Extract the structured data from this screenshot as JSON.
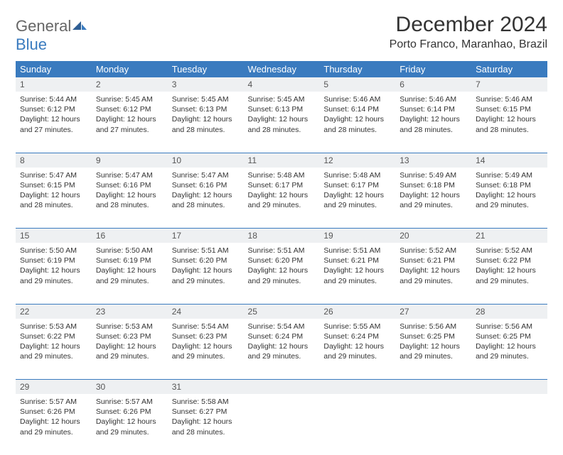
{
  "logo": {
    "word1": "General",
    "word2": "Blue"
  },
  "title": "December 2024",
  "location": "Porto Franco, Maranhao, Brazil",
  "day_headers": [
    "Sunday",
    "Monday",
    "Tuesday",
    "Wednesday",
    "Thursday",
    "Friday",
    "Saturday"
  ],
  "colors": {
    "header_bg": "#3a7bbf",
    "header_fg": "#ffffff",
    "daynum_bg": "#eef0f2",
    "rule": "#3a7bbf",
    "text": "#333333"
  },
  "weeks": [
    [
      {
        "n": "1",
        "sr": "Sunrise: 5:44 AM",
        "ss": "Sunset: 6:12 PM",
        "dl": "Daylight: 12 hours and 27 minutes."
      },
      {
        "n": "2",
        "sr": "Sunrise: 5:45 AM",
        "ss": "Sunset: 6:12 PM",
        "dl": "Daylight: 12 hours and 27 minutes."
      },
      {
        "n": "3",
        "sr": "Sunrise: 5:45 AM",
        "ss": "Sunset: 6:13 PM",
        "dl": "Daylight: 12 hours and 28 minutes."
      },
      {
        "n": "4",
        "sr": "Sunrise: 5:45 AM",
        "ss": "Sunset: 6:13 PM",
        "dl": "Daylight: 12 hours and 28 minutes."
      },
      {
        "n": "5",
        "sr": "Sunrise: 5:46 AM",
        "ss": "Sunset: 6:14 PM",
        "dl": "Daylight: 12 hours and 28 minutes."
      },
      {
        "n": "6",
        "sr": "Sunrise: 5:46 AM",
        "ss": "Sunset: 6:14 PM",
        "dl": "Daylight: 12 hours and 28 minutes."
      },
      {
        "n": "7",
        "sr": "Sunrise: 5:46 AM",
        "ss": "Sunset: 6:15 PM",
        "dl": "Daylight: 12 hours and 28 minutes."
      }
    ],
    [
      {
        "n": "8",
        "sr": "Sunrise: 5:47 AM",
        "ss": "Sunset: 6:15 PM",
        "dl": "Daylight: 12 hours and 28 minutes."
      },
      {
        "n": "9",
        "sr": "Sunrise: 5:47 AM",
        "ss": "Sunset: 6:16 PM",
        "dl": "Daylight: 12 hours and 28 minutes."
      },
      {
        "n": "10",
        "sr": "Sunrise: 5:47 AM",
        "ss": "Sunset: 6:16 PM",
        "dl": "Daylight: 12 hours and 28 minutes."
      },
      {
        "n": "11",
        "sr": "Sunrise: 5:48 AM",
        "ss": "Sunset: 6:17 PM",
        "dl": "Daylight: 12 hours and 29 minutes."
      },
      {
        "n": "12",
        "sr": "Sunrise: 5:48 AM",
        "ss": "Sunset: 6:17 PM",
        "dl": "Daylight: 12 hours and 29 minutes."
      },
      {
        "n": "13",
        "sr": "Sunrise: 5:49 AM",
        "ss": "Sunset: 6:18 PM",
        "dl": "Daylight: 12 hours and 29 minutes."
      },
      {
        "n": "14",
        "sr": "Sunrise: 5:49 AM",
        "ss": "Sunset: 6:18 PM",
        "dl": "Daylight: 12 hours and 29 minutes."
      }
    ],
    [
      {
        "n": "15",
        "sr": "Sunrise: 5:50 AM",
        "ss": "Sunset: 6:19 PM",
        "dl": "Daylight: 12 hours and 29 minutes."
      },
      {
        "n": "16",
        "sr": "Sunrise: 5:50 AM",
        "ss": "Sunset: 6:19 PM",
        "dl": "Daylight: 12 hours and 29 minutes."
      },
      {
        "n": "17",
        "sr": "Sunrise: 5:51 AM",
        "ss": "Sunset: 6:20 PM",
        "dl": "Daylight: 12 hours and 29 minutes."
      },
      {
        "n": "18",
        "sr": "Sunrise: 5:51 AM",
        "ss": "Sunset: 6:20 PM",
        "dl": "Daylight: 12 hours and 29 minutes."
      },
      {
        "n": "19",
        "sr": "Sunrise: 5:51 AM",
        "ss": "Sunset: 6:21 PM",
        "dl": "Daylight: 12 hours and 29 minutes."
      },
      {
        "n": "20",
        "sr": "Sunrise: 5:52 AM",
        "ss": "Sunset: 6:21 PM",
        "dl": "Daylight: 12 hours and 29 minutes."
      },
      {
        "n": "21",
        "sr": "Sunrise: 5:52 AM",
        "ss": "Sunset: 6:22 PM",
        "dl": "Daylight: 12 hours and 29 minutes."
      }
    ],
    [
      {
        "n": "22",
        "sr": "Sunrise: 5:53 AM",
        "ss": "Sunset: 6:22 PM",
        "dl": "Daylight: 12 hours and 29 minutes."
      },
      {
        "n": "23",
        "sr": "Sunrise: 5:53 AM",
        "ss": "Sunset: 6:23 PM",
        "dl": "Daylight: 12 hours and 29 minutes."
      },
      {
        "n": "24",
        "sr": "Sunrise: 5:54 AM",
        "ss": "Sunset: 6:23 PM",
        "dl": "Daylight: 12 hours and 29 minutes."
      },
      {
        "n": "25",
        "sr": "Sunrise: 5:54 AM",
        "ss": "Sunset: 6:24 PM",
        "dl": "Daylight: 12 hours and 29 minutes."
      },
      {
        "n": "26",
        "sr": "Sunrise: 5:55 AM",
        "ss": "Sunset: 6:24 PM",
        "dl": "Daylight: 12 hours and 29 minutes."
      },
      {
        "n": "27",
        "sr": "Sunrise: 5:56 AM",
        "ss": "Sunset: 6:25 PM",
        "dl": "Daylight: 12 hours and 29 minutes."
      },
      {
        "n": "28",
        "sr": "Sunrise: 5:56 AM",
        "ss": "Sunset: 6:25 PM",
        "dl": "Daylight: 12 hours and 29 minutes."
      }
    ],
    [
      {
        "n": "29",
        "sr": "Sunrise: 5:57 AM",
        "ss": "Sunset: 6:26 PM",
        "dl": "Daylight: 12 hours and 29 minutes."
      },
      {
        "n": "30",
        "sr": "Sunrise: 5:57 AM",
        "ss": "Sunset: 6:26 PM",
        "dl": "Daylight: 12 hours and 29 minutes."
      },
      {
        "n": "31",
        "sr": "Sunrise: 5:58 AM",
        "ss": "Sunset: 6:27 PM",
        "dl": "Daylight: 12 hours and 28 minutes."
      },
      null,
      null,
      null,
      null
    ]
  ]
}
